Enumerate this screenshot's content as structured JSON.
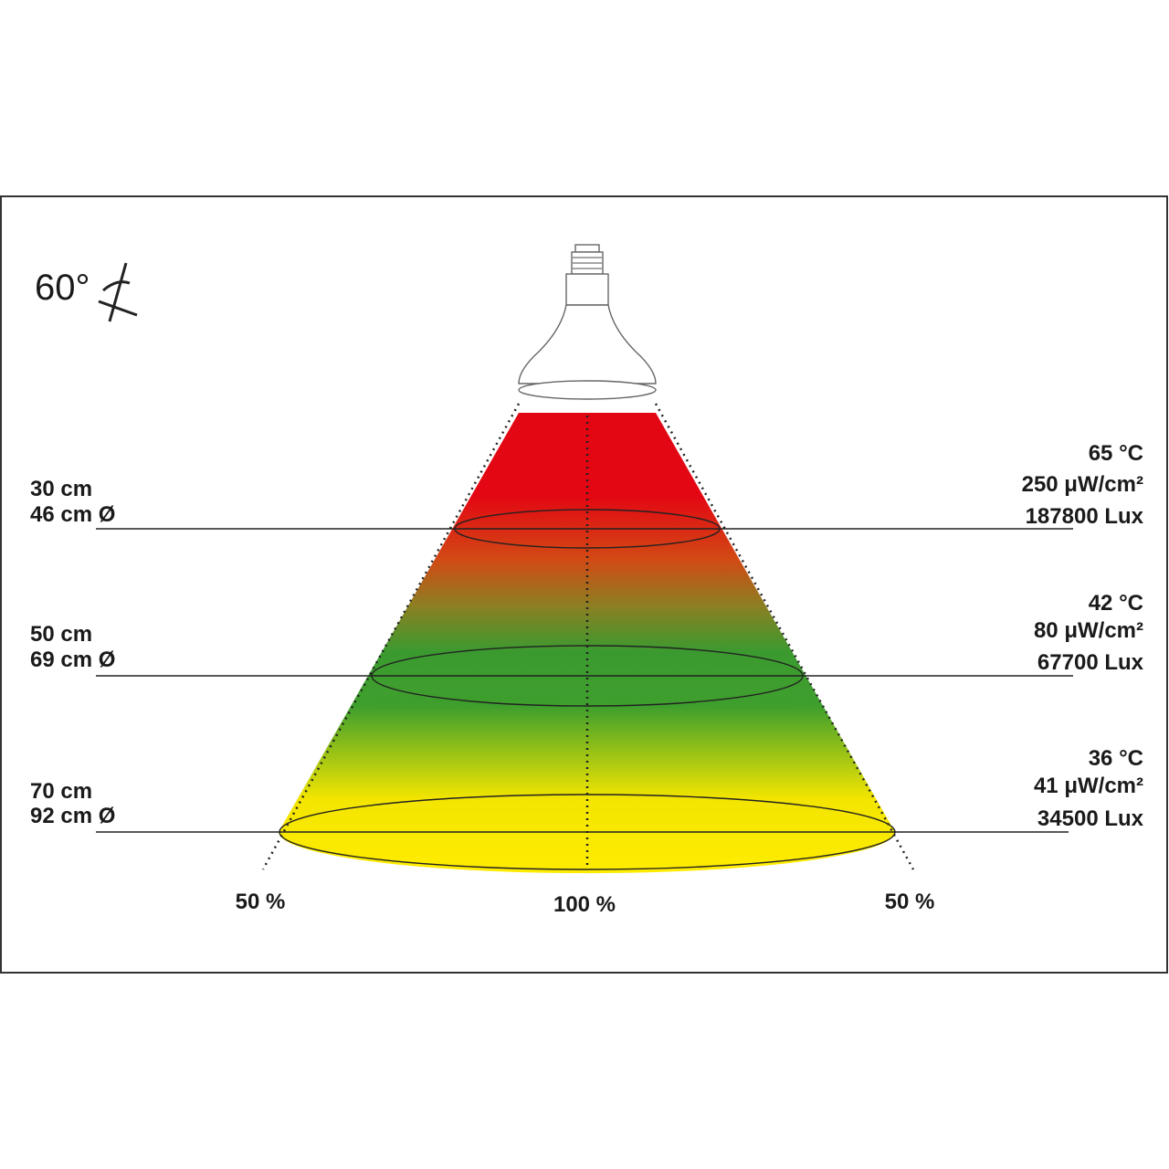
{
  "angle_label": "60°",
  "levels": [
    {
      "distance": "30 cm",
      "diameter": "46 cm Ø",
      "temperature": "65 °C",
      "irradiance": "250 μW/cm²",
      "illuminance": "187800 Lux"
    },
    {
      "distance": "50 cm",
      "diameter": "69 cm Ø",
      "temperature": "42 °C",
      "irradiance": "80 μW/cm²",
      "illuminance": "67700 Lux"
    },
    {
      "distance": "70 cm",
      "diameter": "92 cm Ø",
      "temperature": "36 °C",
      "irradiance": "41 μW/cm²",
      "illuminance": "34500 Lux"
    }
  ],
  "intensity_labels": [
    "50 %",
    "100 %",
    "50 %"
  ]
}
